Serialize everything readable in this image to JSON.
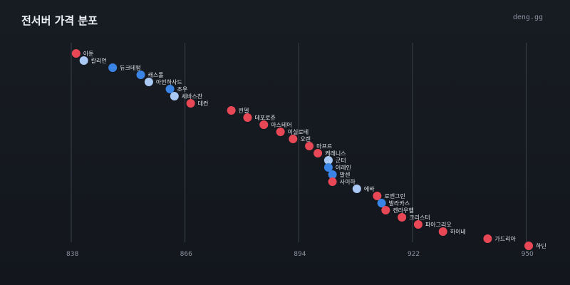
{
  "header": {
    "title": "전서버 가격 분포",
    "brand": "deng.gg"
  },
  "colors": {
    "red": "#e84855",
    "blue": "#3a84e6",
    "lightblue": "#a9c8f3"
  },
  "chart_data": {
    "type": "scatter",
    "title": "전서버 가격 분포",
    "xlabel": "",
    "ylabel": "",
    "xlim": [
      838,
      952
    ],
    "xticks": [
      838,
      866,
      894,
      922,
      950
    ],
    "grid": true,
    "points": [
      {
        "name": "아툰",
        "x": 839.2,
        "color": "red"
      },
      {
        "name": "칼리언",
        "x": 841.1,
        "color": "lightblue"
      },
      {
        "name": "듀크데펑",
        "x": 848.2,
        "color": "blue"
      },
      {
        "name": "캐스톨",
        "x": 855.1,
        "color": "blue"
      },
      {
        "name": "아인하사드",
        "x": 857.1,
        "color": "lightblue"
      },
      {
        "name": "조우",
        "x": 862.3,
        "color": "blue"
      },
      {
        "name": "세바스찬",
        "x": 863.4,
        "color": "lightblue"
      },
      {
        "name": "데컨",
        "x": 867.4,
        "color": "red"
      },
      {
        "name": "린델",
        "x": 877.4,
        "color": "red"
      },
      {
        "name": "데포로쥬",
        "x": 881.4,
        "color": "red"
      },
      {
        "name": "아스테어",
        "x": 885.4,
        "color": "red"
      },
      {
        "name": "이실로테",
        "x": 889.5,
        "color": "red"
      },
      {
        "name": "오렌",
        "x": 892.6,
        "color": "red"
      },
      {
        "name": "마프르",
        "x": 896.6,
        "color": "red"
      },
      {
        "name": "케레니스",
        "x": 898.7,
        "color": "red"
      },
      {
        "name": "군터",
        "x": 901.3,
        "color": "lightblue"
      },
      {
        "name": "어레인",
        "x": 901.3,
        "color": "blue"
      },
      {
        "name": "발센",
        "x": 902.3,
        "color": "blue"
      },
      {
        "name": "사이하",
        "x": 902.3,
        "color": "red"
      },
      {
        "name": "에바",
        "x": 908.3,
        "color": "lightblue"
      },
      {
        "name": "로엔그린",
        "x": 913.3,
        "color": "red"
      },
      {
        "name": "발라카스",
        "x": 914.4,
        "color": "blue"
      },
      {
        "name": "켄라우헬",
        "x": 915.4,
        "color": "red"
      },
      {
        "name": "크리스터",
        "x": 919.4,
        "color": "red"
      },
      {
        "name": "파아그리오",
        "x": 923.4,
        "color": "red"
      },
      {
        "name": "하이네",
        "x": 929.5,
        "color": "red"
      },
      {
        "name": "가드리아",
        "x": 940.5,
        "color": "red"
      },
      {
        "name": "하딘",
        "x": 950.6,
        "color": "red"
      }
    ]
  }
}
